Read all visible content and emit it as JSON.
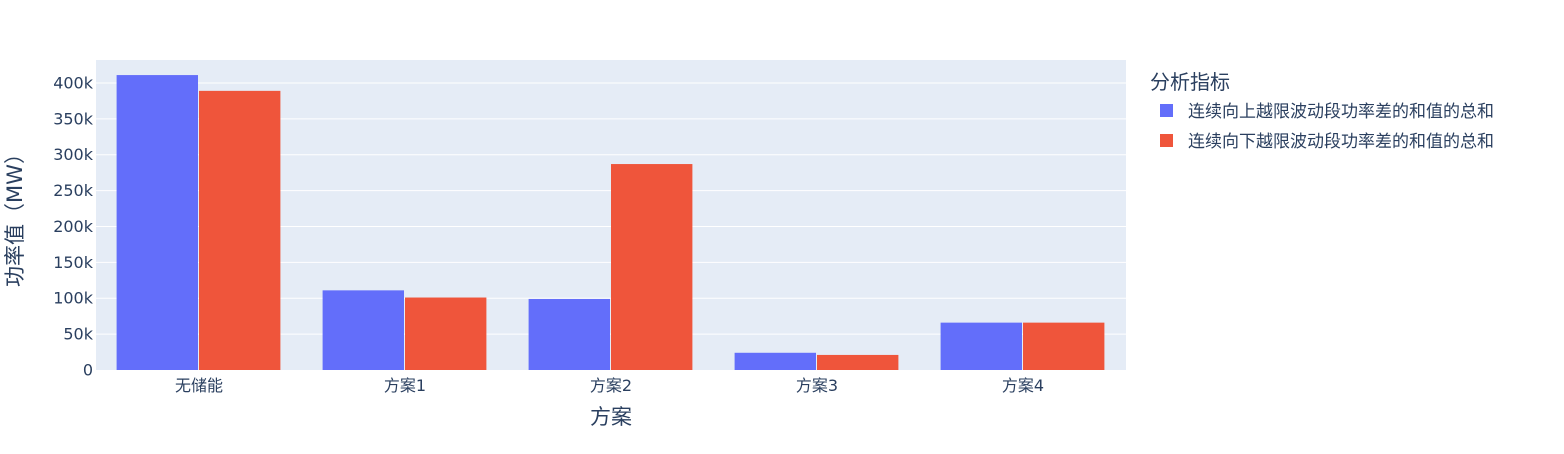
{
  "chart_data": {
    "type": "bar",
    "barmode": "group",
    "categories": [
      "无储能",
      "方案1",
      "方案2",
      "方案3",
      "方案4"
    ],
    "series": [
      {
        "name": "连续向上越限波动段功率差的和值的总和",
        "values": [
          411000,
          111000,
          99000,
          24000,
          66000
        ],
        "color": "#636efa"
      },
      {
        "name": "连续向下越限波动段功率差的和值的总和",
        "values": [
          389000,
          101000,
          287000,
          21000,
          66000
        ],
        "color": "#ef553b"
      }
    ],
    "title": "",
    "xlabel": "方案",
    "ylabel": "功率值（MW）",
    "ylim": [
      0,
      432000
    ],
    "yticks": [
      0,
      50000,
      100000,
      150000,
      200000,
      250000,
      300000,
      350000,
      400000
    ],
    "ytick_labels": [
      "0",
      "50k",
      "100k",
      "150k",
      "200k",
      "250k",
      "300k",
      "350k",
      "400k"
    ],
    "grid": true,
    "plot_background": "#e5ecf6",
    "legend": {
      "title": "分析指标",
      "placement": "right"
    }
  }
}
